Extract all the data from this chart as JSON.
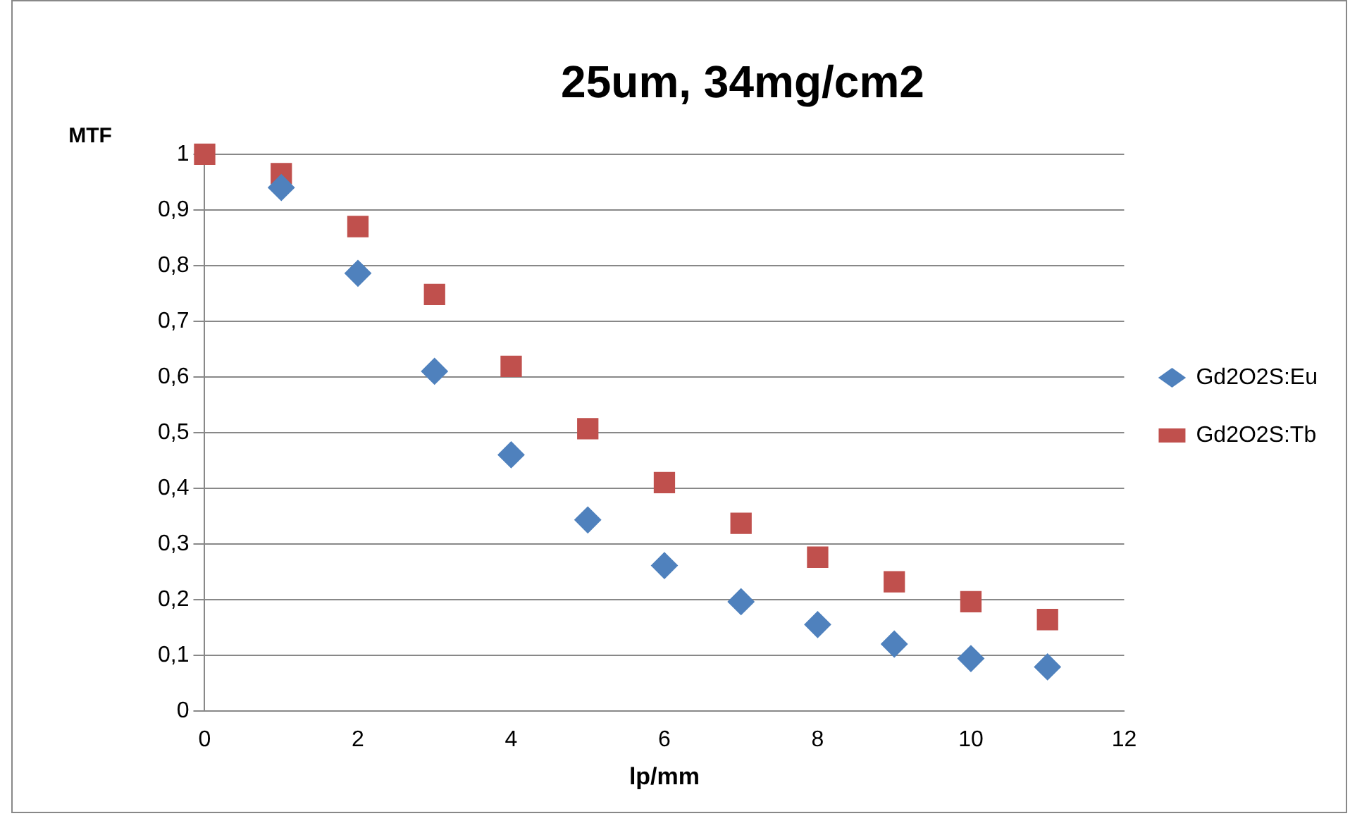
{
  "chart_data": {
    "type": "scatter",
    "title": "25um, 34mg/cm2",
    "xlabel": "lp/mm",
    "ylabel": "MTF",
    "x": [
      0,
      1,
      2,
      3,
      4,
      5,
      6,
      7,
      8,
      9,
      10,
      11
    ],
    "series": [
      {
        "name": "Gd2O2S:Eu",
        "color": "#4f81bd",
        "marker": "diamond",
        "values": [
          null,
          0.94,
          0.786,
          0.61,
          0.46,
          0.343,
          0.261,
          0.196,
          0.155,
          0.12,
          0.094,
          0.079
        ]
      },
      {
        "name": "Gd2O2S:Tb",
        "color": "#c0504d",
        "marker": "square",
        "values": [
          1.0,
          0.965,
          0.87,
          0.748,
          0.619,
          0.507,
          0.41,
          0.337,
          0.276,
          0.232,
          0.196,
          0.164
        ]
      }
    ],
    "xlim": [
      0,
      12
    ],
    "xticks": [
      0,
      2,
      4,
      6,
      8,
      10,
      12
    ],
    "ylim": [
      0,
      1
    ],
    "yticks": [
      0,
      {
        "value": 0.1,
        "label": "0,1"
      },
      {
        "value": 0.2,
        "label": "0,2"
      },
      {
        "value": 0.3,
        "label": "0,3"
      },
      {
        "value": 0.4,
        "label": "0,4"
      },
      {
        "value": 0.5,
        "label": "0,5"
      },
      {
        "value": 0.6,
        "label": "0,6"
      },
      {
        "value": 0.7,
        "label": "0,7"
      },
      {
        "value": 0.8,
        "label": "0,8"
      },
      {
        "value": 0.9,
        "label": "0,9"
      },
      1
    ],
    "grid": "y",
    "legend": "right"
  }
}
